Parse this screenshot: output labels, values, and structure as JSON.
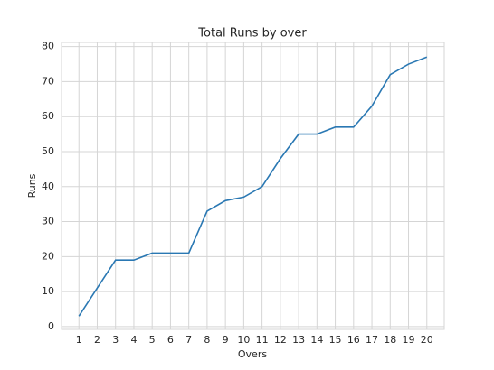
{
  "chart_data": {
    "type": "line",
    "title": "Total Runs by over",
    "x_label": "Overs",
    "y_label": "Runs",
    "x": [
      1,
      2,
      3,
      4,
      5,
      6,
      7,
      8,
      9,
      10,
      11,
      12,
      13,
      14,
      15,
      16,
      17,
      18,
      19,
      20
    ],
    "series": [
      {
        "name": "Runs",
        "color": "#2a78b3",
        "values": [
          3,
          11,
          19,
          19,
          21,
          21,
          21,
          33,
          36,
          37,
          40,
          48,
          55,
          55,
          57,
          57,
          63,
          72,
          75,
          77
        ]
      }
    ],
    "xlim": [
      0.05,
      20.95
    ],
    "xticks": [
      1,
      2,
      3,
      4,
      5,
      6,
      7,
      8,
      9,
      10,
      11,
      12,
      13,
      14,
      15,
      16,
      17,
      18,
      19,
      20
    ],
    "ylim": [
      -0.8,
      81.2
    ],
    "yticks": [
      0,
      10,
      20,
      30,
      40,
      50,
      60,
      70,
      80
    ],
    "grid": true
  }
}
